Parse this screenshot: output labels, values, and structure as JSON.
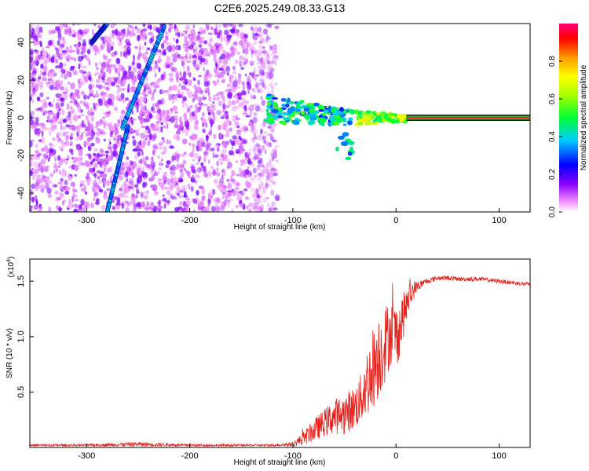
{
  "title": "C2E6.2025.249.08.33.G13",
  "chart_data": [
    {
      "type": "heatmap",
      "name": "spectrogram",
      "xlabel": "Height of straight line (km)",
      "ylabel": "Frequency (Hz)",
      "xlim": [
        -355,
        130
      ],
      "ylim": [
        -50,
        50
      ],
      "x_ticks": [
        -300,
        -200,
        -100,
        0,
        100
      ],
      "y_ticks": [
        -40,
        -20,
        0,
        20,
        40
      ],
      "colorbar": {
        "label": "Normalized spectral amplitude",
        "range": [
          0,
          1
        ],
        "ticks": [
          0.0,
          0.2,
          0.4,
          0.6,
          0.8
        ]
      },
      "features": {
        "noise_region_x": [
          -355,
          -115
        ],
        "carrier_start_x": -125,
        "carrier_steady_from_x": 10,
        "carrier_freq_hz": 0,
        "diagonal_traces": [
          {
            "x": [
              -280,
              -260
            ],
            "y": [
              -50,
              -5
            ]
          },
          {
            "x": [
              -265,
              -225
            ],
            "y": [
              -5,
              48
            ]
          },
          {
            "x": [
              -295,
              -280
            ],
            "y": [
              40,
              50
            ]
          }
        ]
      }
    },
    {
      "type": "line",
      "name": "snr",
      "xlabel": "Height of straight line (km)",
      "ylabel": "SNR (10 * v/v)",
      "y_multiplier_label": "(x10",
      "y_multiplier_exp": "4",
      "y_multiplier_close": ")",
      "xlim": [
        -355,
        130
      ],
      "ylim": [
        0,
        1.7
      ],
      "x_ticks": [
        -300,
        -200,
        -100,
        0,
        100
      ],
      "y_ticks": [
        0.5,
        1.0,
        1.5
      ],
      "series": [
        {
          "name": "SNR",
          "color": "#e8201a",
          "x": [
            -355,
            -300,
            -250,
            -200,
            -150,
            -120,
            -100,
            -90,
            -80,
            -70,
            -60,
            -50,
            -40,
            -35,
            -30,
            -25,
            -20,
            -15,
            -10,
            -5,
            0,
            5,
            10,
            15,
            20,
            30,
            40,
            50,
            60,
            80,
            100,
            120,
            130
          ],
          "y": [
            0.02,
            0.02,
            0.03,
            0.02,
            0.02,
            0.02,
            0.03,
            0.08,
            0.15,
            0.22,
            0.28,
            0.3,
            0.36,
            0.42,
            0.55,
            0.65,
            0.78,
            0.86,
            0.95,
            1.05,
            1.0,
            1.12,
            1.28,
            1.4,
            1.45,
            1.5,
            1.53,
            1.53,
            1.52,
            1.52,
            1.5,
            1.48,
            1.47
          ],
          "noise_amp": [
            0.01,
            0.01,
            0.02,
            0.01,
            0.01,
            0.01,
            0.02,
            0.06,
            0.1,
            0.12,
            0.16,
            0.18,
            0.2,
            0.22,
            0.3,
            0.35,
            0.4,
            0.38,
            0.35,
            0.3,
            0.3,
            0.25,
            0.15,
            0.12,
            0.05,
            0.025,
            0.02,
            0.02,
            0.02,
            0.02,
            0.02,
            0.02,
            0.02
          ]
        }
      ]
    }
  ]
}
